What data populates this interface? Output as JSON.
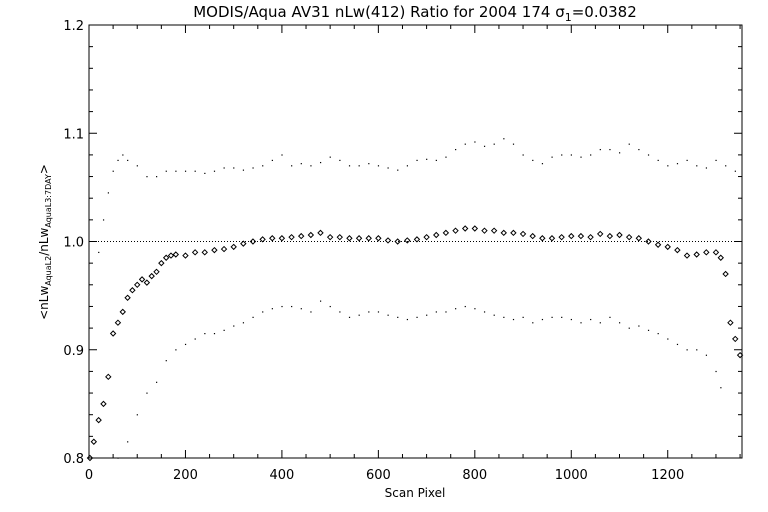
{
  "chart_data": {
    "type": "scatter",
    "title": "MODIS/Aqua AV31 nLw(412) Ratio for 2004 174 σ₁=0.0382",
    "title_parts": {
      "main": "MODIS/Aqua AV31 nLw(412) Ratio for 2004 174 ",
      "sigma": "σ",
      "sigma_sub": "1",
      "sigma_value": "=0.0382"
    },
    "xlabel": "Scan Pixel",
    "ylabel": "<nLw_AquaL2/nLw_AquaL3:7DAY>",
    "ylabel_parts": {
      "open": "<nLw",
      "sub1": "AquaL2",
      "mid": "/nLw",
      "sub2": "AquaL3:7DAY",
      "close": ">"
    },
    "xlim": [
      0,
      1354
    ],
    "ylim": [
      0.8,
      1.2
    ],
    "x_ticks": [
      0,
      200,
      400,
      600,
      800,
      1000,
      1200
    ],
    "x_tick_labels": [
      "0",
      "200",
      "400",
      "600",
      "800",
      "1000",
      "1200"
    ],
    "y_ticks": [
      0.8,
      0.9,
      1.0,
      1.1,
      1.2
    ],
    "y_tick_labels": [
      "0.8",
      "0.9",
      "1.0",
      "1.1",
      "1.2"
    ],
    "reference_line": 1.0,
    "grid": false,
    "series": [
      {
        "style": "diamond-markers",
        "x": [
          2,
          10,
          20,
          30,
          40,
          50,
          60,
          70,
          80,
          90,
          100,
          110,
          120,
          130,
          140,
          150,
          160,
          170,
          180,
          200,
          220,
          240,
          260,
          280,
          300,
          320,
          340,
          360,
          380,
          400,
          420,
          440,
          460,
          480,
          500,
          520,
          540,
          560,
          580,
          600,
          620,
          640,
          660,
          680,
          700,
          720,
          740,
          760,
          780,
          800,
          820,
          840,
          860,
          880,
          900,
          920,
          940,
          960,
          980,
          1000,
          1020,
          1040,
          1060,
          1080,
          1100,
          1120,
          1140,
          1160,
          1180,
          1200,
          1220,
          1240,
          1260,
          1280,
          1300,
          1310,
          1320,
          1330,
          1340,
          1350
        ],
        "y": [
          0.8,
          0.815,
          0.835,
          0.85,
          0.875,
          0.915,
          0.925,
          0.935,
          0.948,
          0.955,
          0.96,
          0.965,
          0.962,
          0.968,
          0.972,
          0.98,
          0.985,
          0.987,
          0.988,
          0.987,
          0.99,
          0.99,
          0.992,
          0.993,
          0.995,
          0.998,
          1.0,
          1.002,
          1.003,
          1.003,
          1.004,
          1.005,
          1.006,
          1.008,
          1.004,
          1.004,
          1.003,
          1.003,
          1.003,
          1.003,
          1.001,
          1.0,
          1.001,
          1.002,
          1.004,
          1.006,
          1.008,
          1.01,
          1.012,
          1.012,
          1.01,
          1.01,
          1.008,
          1.008,
          1.007,
          1.005,
          1.003,
          1.003,
          1.004,
          1.005,
          1.005,
          1.004,
          1.007,
          1.005,
          1.006,
          1.004,
          1.003,
          1.0,
          0.997,
          0.995,
          0.992,
          0.987,
          0.988,
          0.99,
          0.99,
          0.985,
          0.97,
          0.925,
          0.91,
          0.895
        ]
      },
      {
        "style": "dots-upper",
        "x": [
          20,
          30,
          40,
          50,
          60,
          70,
          80,
          100,
          120,
          140,
          160,
          180,
          200,
          220,
          240,
          260,
          280,
          300,
          320,
          340,
          360,
          380,
          400,
          420,
          440,
          460,
          480,
          500,
          520,
          540,
          560,
          580,
          600,
          620,
          640,
          660,
          680,
          700,
          720,
          740,
          760,
          780,
          800,
          820,
          840,
          860,
          880,
          900,
          920,
          940,
          960,
          980,
          1000,
          1020,
          1040,
          1060,
          1080,
          1100,
          1120,
          1140,
          1160,
          1180,
          1200,
          1220,
          1240,
          1260,
          1280,
          1300,
          1320,
          1340
        ],
        "y": [
          0.99,
          1.02,
          1.045,
          1.065,
          1.075,
          1.08,
          1.075,
          1.07,
          1.06,
          1.06,
          1.065,
          1.065,
          1.065,
          1.065,
          1.063,
          1.065,
          1.068,
          1.068,
          1.066,
          1.068,
          1.07,
          1.075,
          1.08,
          1.07,
          1.072,
          1.07,
          1.073,
          1.078,
          1.075,
          1.07,
          1.07,
          1.072,
          1.07,
          1.068,
          1.066,
          1.07,
          1.075,
          1.076,
          1.075,
          1.078,
          1.085,
          1.09,
          1.092,
          1.088,
          1.09,
          1.095,
          1.09,
          1.08,
          1.075,
          1.072,
          1.078,
          1.08,
          1.08,
          1.078,
          1.08,
          1.085,
          1.085,
          1.082,
          1.09,
          1.085,
          1.08,
          1.075,
          1.07,
          1.072,
          1.075,
          1.07,
          1.068,
          1.075,
          1.07,
          1.065
        ]
      },
      {
        "style": "dots-lower",
        "x": [
          60,
          80,
          100,
          120,
          140,
          160,
          180,
          200,
          220,
          240,
          260,
          280,
          300,
          320,
          340,
          360,
          380,
          400,
          420,
          440,
          460,
          480,
          500,
          520,
          540,
          560,
          580,
          600,
          620,
          640,
          660,
          680,
          700,
          720,
          740,
          760,
          780,
          800,
          820,
          840,
          860,
          880,
          900,
          920,
          940,
          960,
          980,
          1000,
          1020,
          1040,
          1060,
          1080,
          1100,
          1120,
          1140,
          1160,
          1180,
          1200,
          1220,
          1240,
          1260,
          1280,
          1300,
          1310
        ],
        "y": [
          0.8,
          0.815,
          0.84,
          0.86,
          0.87,
          0.89,
          0.9,
          0.905,
          0.91,
          0.915,
          0.915,
          0.918,
          0.922,
          0.925,
          0.93,
          0.935,
          0.938,
          0.94,
          0.94,
          0.938,
          0.935,
          0.945,
          0.94,
          0.935,
          0.93,
          0.932,
          0.935,
          0.935,
          0.932,
          0.93,
          0.928,
          0.93,
          0.932,
          0.935,
          0.935,
          0.938,
          0.94,
          0.938,
          0.935,
          0.932,
          0.93,
          0.928,
          0.93,
          0.925,
          0.928,
          0.93,
          0.93,
          0.928,
          0.925,
          0.928,
          0.925,
          0.93,
          0.925,
          0.92,
          0.922,
          0.918,
          0.915,
          0.91,
          0.905,
          0.9,
          0.9,
          0.895,
          0.88,
          0.865
        ]
      }
    ]
  }
}
